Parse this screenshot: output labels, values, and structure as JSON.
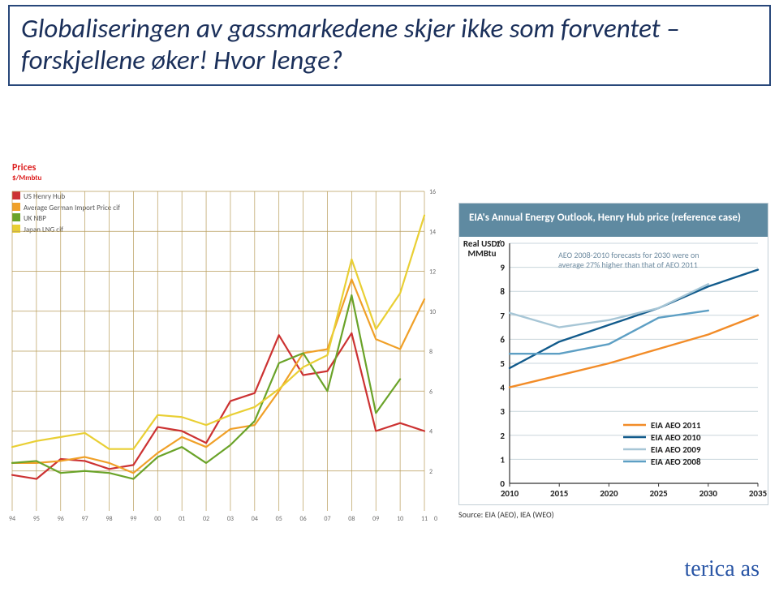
{
  "title": "Globaliseringen av gassmarkedene skjer ikke som forventet – forskjellene øker! Hvor lenge?",
  "logo": "terica as",
  "left_chart": {
    "type": "line",
    "prices_label": "Prices",
    "unit": "$/Mmbtu",
    "grid_color": "#b89c5a",
    "background": "#ffffff",
    "x_years": [
      "94",
      "95",
      "96",
      "97",
      "98",
      "99",
      "00",
      "01",
      "02",
      "03",
      "04",
      "05",
      "06",
      "07",
      "08",
      "09",
      "10",
      "11",
      "0"
    ],
    "y_ticks": [
      2,
      4,
      6,
      8,
      10,
      12,
      14,
      16
    ],
    "ylim": [
      0,
      16
    ],
    "series": [
      {
        "name": "US Henry Hub",
        "color": "#cc3232",
        "data": [
          1.8,
          1.6,
          2.6,
          2.5,
          2.1,
          2.3,
          4.2,
          4.0,
          3.4,
          5.5,
          5.9,
          8.8,
          6.8,
          7.0,
          8.9,
          4.0,
          4.4,
          4.0
        ]
      },
      {
        "name": "Average German Import Price cif",
        "color": "#f0a028",
        "data": [
          2.4,
          2.4,
          2.5,
          2.7,
          2.4,
          1.9,
          2.9,
          3.7,
          3.2,
          4.1,
          4.3,
          6.0,
          7.9,
          8.1,
          11.6,
          8.6,
          8.1,
          10.6
        ]
      },
      {
        "name": "UK NBP",
        "color": "#6aa329",
        "data": [
          2.4,
          2.5,
          1.9,
          2.0,
          1.9,
          1.6,
          2.7,
          3.2,
          2.4,
          3.3,
          4.5,
          7.4,
          7.9,
          6.0,
          10.8,
          4.9,
          6.6,
          null
        ]
      },
      {
        "name": "Japan LNG cif",
        "color": "#e9cf34",
        "data": [
          3.2,
          3.5,
          3.7,
          3.9,
          3.1,
          3.1,
          4.8,
          4.7,
          4.3,
          4.8,
          5.2,
          6.1,
          7.2,
          7.8,
          12.6,
          9.1,
          10.9,
          14.8
        ]
      }
    ],
    "series_fontcolor": "#555",
    "tick_fontcolor": "#6b6b6b",
    "tick_fontsize": 8,
    "line_width": 2.2
  },
  "right_chart": {
    "header": "EIA's Annual Energy Outlook, Henry Hub price (reference case)",
    "note": "AEO 2008-2010 forecasts for 2030 were on average 27% higher than that of AEO 2011",
    "note_color": "#6e8ba0",
    "ylabel": "Real USD/\nMMBtu",
    "x_ticks": [
      2010,
      2015,
      2020,
      2025,
      2030,
      2035
    ],
    "y_ticks": [
      0,
      1,
      2,
      3,
      4,
      5,
      6,
      7,
      8,
      9,
      10
    ],
    "ylim": [
      0,
      10
    ],
    "grid_color": "#c9d6dc",
    "series": [
      {
        "name": "EIA AEO 2011",
        "color": "#f28c28",
        "data": [
          [
            2010,
            4.0
          ],
          [
            2015,
            4.5
          ],
          [
            2020,
            5.0
          ],
          [
            2025,
            5.6
          ],
          [
            2030,
            6.2
          ],
          [
            2035,
            7.0
          ]
        ]
      },
      {
        "name": "EIA AEO 2010",
        "color": "#125b8c",
        "data": [
          [
            2010,
            4.8
          ],
          [
            2015,
            5.9
          ],
          [
            2020,
            6.6
          ],
          [
            2025,
            7.3
          ],
          [
            2030,
            8.2
          ],
          [
            2035,
            8.9
          ]
        ]
      },
      {
        "name": "EIA AEO 2009",
        "color": "#a7c6d6",
        "data": [
          [
            2010,
            7.1
          ],
          [
            2015,
            6.5
          ],
          [
            2020,
            6.8
          ],
          [
            2025,
            7.3
          ],
          [
            2030,
            8.3
          ]
        ]
      },
      {
        "name": "EIA AEO 2008",
        "color": "#5d9fc4",
        "data": [
          [
            2010,
            5.4
          ],
          [
            2015,
            5.4
          ],
          [
            2020,
            5.8
          ],
          [
            2025,
            6.9
          ],
          [
            2030,
            7.2
          ]
        ]
      }
    ],
    "legend_font": "#222",
    "line_width": 2.4,
    "source": "Source: EIA (AEO), IEA (WEO)"
  }
}
